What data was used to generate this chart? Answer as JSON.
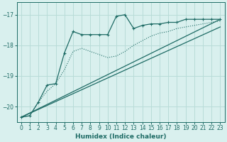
{
  "xlabel": "Humidex (Indice chaleur)",
  "bg_color": "#d9f0ee",
  "grid_color": "#b8dcd8",
  "line_color": "#1e6b65",
  "xlim": [
    -0.5,
    23.5
  ],
  "ylim": [
    -20.5,
    -16.6
  ],
  "xticks": [
    0,
    1,
    2,
    3,
    4,
    5,
    6,
    7,
    8,
    9,
    10,
    11,
    12,
    13,
    14,
    15,
    16,
    17,
    18,
    19,
    20,
    21,
    22,
    23
  ],
  "yticks": [
    -20,
    -19,
    -18,
    -17
  ],
  "line_jagged_x": [
    0,
    1,
    2,
    3,
    4,
    5,
    6,
    7,
    8,
    9,
    10,
    11,
    12,
    13,
    14,
    15,
    16,
    17,
    18,
    19,
    20,
    21,
    22,
    23
  ],
  "line_jagged_y": [
    -20.35,
    -20.3,
    -19.85,
    -19.3,
    -19.25,
    -18.25,
    -17.55,
    -17.65,
    -17.65,
    -17.65,
    -17.65,
    -17.05,
    -17.0,
    -17.45,
    -17.35,
    -17.3,
    -17.3,
    -17.25,
    -17.25,
    -17.15,
    -17.15,
    -17.15,
    -17.15,
    -17.15
  ],
  "line_smooth_x": [
    0,
    1,
    2,
    3,
    4,
    5,
    6,
    7,
    8,
    9,
    10,
    11,
    12,
    13,
    14,
    15,
    16,
    17,
    18,
    19,
    20,
    21,
    22,
    23
  ],
  "line_smooth_y": [
    -20.35,
    -20.3,
    -19.85,
    -19.5,
    -19.25,
    -18.8,
    -18.2,
    -18.1,
    -18.2,
    -18.3,
    -18.4,
    -18.35,
    -18.2,
    -18.0,
    -17.85,
    -17.7,
    -17.6,
    -17.55,
    -17.45,
    -17.4,
    -17.35,
    -17.3,
    -17.25,
    -17.2
  ],
  "trend1_x": [
    0,
    23
  ],
  "trend1_y": [
    -20.35,
    -17.15
  ],
  "trend2_x": [
    0,
    23
  ],
  "trend2_y": [
    -20.35,
    -17.4
  ]
}
